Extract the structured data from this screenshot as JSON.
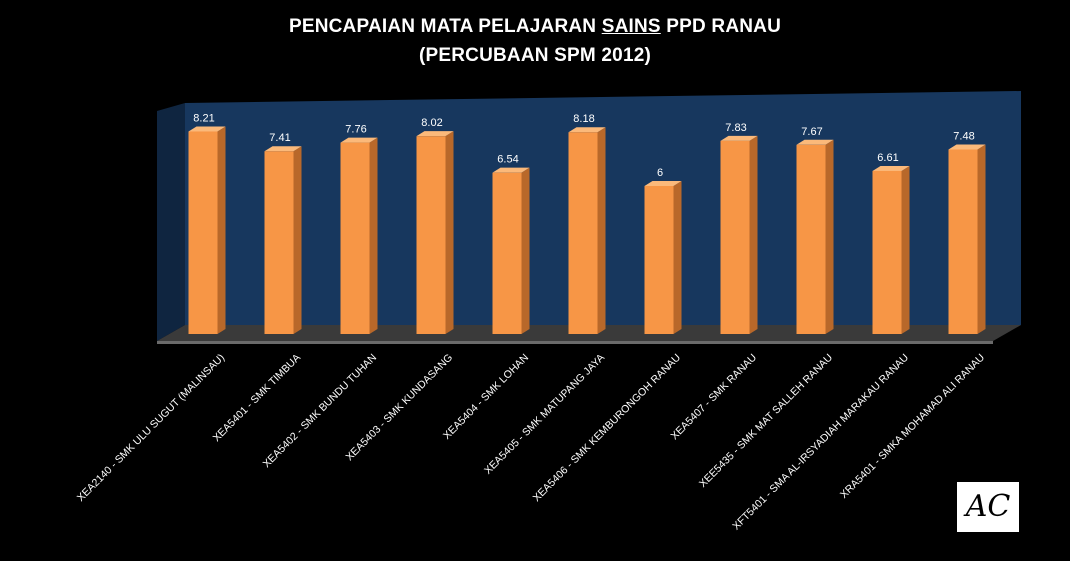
{
  "title_parts": {
    "line1_before": "PENCAPAIAN  MATA PELAJARAN ",
    "line1_underlined": "SAINS",
    "line1_after": " PPD RANAU",
    "line2": "(PERCUBAAN SPM 2012)"
  },
  "logo": {
    "text": "AC"
  },
  "chart_data": {
    "type": "bar",
    "title": "PENCAPAIAN  MATA PELAJARAN SAINS PPD RANAU (PERCUBAAN SPM 2012)",
    "categories": [
      "XEA2140 - SMK ULU SUGUT (MALINSAU)",
      "XEA5401 - SMK TIMBUA",
      "XEA5402 - SMK BUNDU TUHAN",
      "XEA5403 - SMK KUNDASANG",
      "XEA5404 - SMK LOHAN",
      "XEA5405 - SMK MATUPANG JAYA",
      "XEA5406 - SMK KEMBURONGOH RANAU",
      "XEA5407 - SMK RANAU",
      "XEE5435 - SMK MAT SALLEH RANAU",
      "XFT5401 - SMA AL-IRSYADIAH MARAKAU RANAU",
      "XRA5401 - SMKA MOHAMAD ALI RANAU"
    ],
    "values": [
      8.21,
      7.41,
      7.76,
      8.02,
      6.54,
      8.18,
      6,
      7.83,
      7.67,
      6.61,
      7.48
    ],
    "value_labels": [
      "8.21",
      "7.41",
      "7.76",
      "8.02",
      "6.54",
      "8.18",
      "6",
      "7.83",
      "7.67",
      "6.61",
      "7.48"
    ],
    "ylim": [
      0,
      9
    ],
    "grid": false,
    "legend": "none",
    "bar_color": "#F79646",
    "bar_side_color": "#B8682A",
    "bar_top_color": "#FBB97A",
    "wall_color": "#17375E",
    "floor_color": "#3A3A3A",
    "background": "#000000",
    "text_color": "#FFFFFF"
  }
}
